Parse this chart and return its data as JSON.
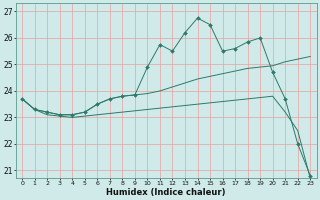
{
  "xlabel": "Humidex (Indice chaleur)",
  "bg_color": "#d0eaea",
  "grid_color": "#e8a0a0",
  "line_color": "#2d7a6a",
  "xlim": [
    -0.5,
    23.5
  ],
  "ylim": [
    20.7,
    27.3
  ],
  "yticks": [
    21,
    22,
    23,
    24,
    25,
    26,
    27
  ],
  "xticks": [
    0,
    1,
    2,
    3,
    4,
    5,
    6,
    7,
    8,
    9,
    10,
    11,
    12,
    13,
    14,
    15,
    16,
    17,
    18,
    19,
    20,
    21,
    22,
    23
  ],
  "series1": [
    23.7,
    23.3,
    23.2,
    23.1,
    23.1,
    23.2,
    23.5,
    23.7,
    23.8,
    23.85,
    24.9,
    25.75,
    25.5,
    26.2,
    26.75,
    26.5,
    25.5,
    25.6,
    25.85,
    26.0,
    24.7,
    23.7,
    22.0,
    20.8
  ],
  "series2": [
    23.7,
    23.3,
    23.2,
    23.1,
    23.1,
    23.2,
    23.5,
    23.7,
    23.8,
    23.85,
    23.9,
    24.0,
    24.15,
    24.3,
    24.45,
    24.55,
    24.65,
    24.75,
    24.85,
    24.9,
    24.95,
    25.1,
    25.2,
    25.3
  ],
  "series3": [
    23.7,
    23.3,
    23.1,
    23.05,
    23.0,
    23.05,
    23.1,
    23.15,
    23.2,
    23.25,
    23.3,
    23.35,
    23.4,
    23.45,
    23.5,
    23.55,
    23.6,
    23.65,
    23.7,
    23.75,
    23.8,
    23.2,
    22.5,
    20.7
  ]
}
